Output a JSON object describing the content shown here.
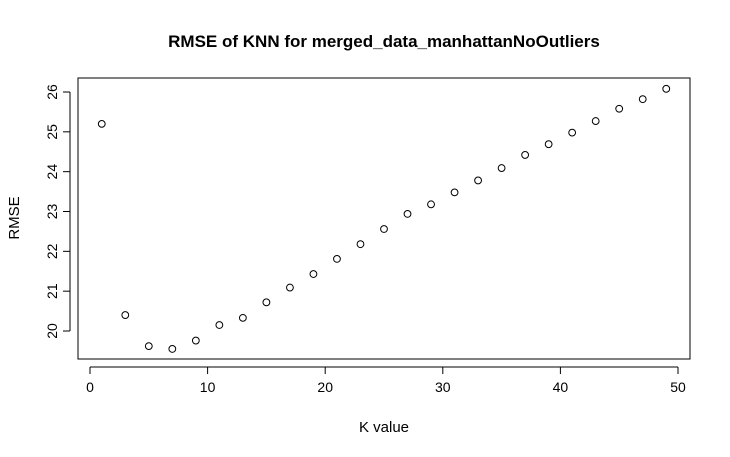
{
  "chart_data": {
    "type": "scatter",
    "title": "RMSE of KNN for merged_data_manhattanNoOutliers",
    "xlabel": "K value",
    "ylabel": "RMSE",
    "x_ticks": [
      0,
      10,
      20,
      30,
      40,
      50
    ],
    "y_ticks": [
      20,
      21,
      22,
      23,
      24,
      25,
      26
    ],
    "xlim": [
      0,
      50
    ],
    "ylim": [
      19.5,
      26.1
    ],
    "grid": false,
    "marker": "open-circle",
    "series": [
      {
        "x": [
          1,
          3,
          5,
          7,
          9,
          11,
          13,
          15,
          17,
          19,
          21,
          23,
          25,
          27,
          29,
          31,
          33,
          35,
          37,
          39,
          41,
          43,
          45,
          47,
          49
        ],
        "y": [
          25.2,
          20.4,
          19.62,
          19.55,
          19.76,
          20.15,
          20.33,
          20.72,
          21.09,
          21.43,
          21.81,
          22.18,
          22.56,
          22.94,
          23.18,
          23.48,
          23.78,
          24.09,
          24.42,
          24.69,
          24.98,
          25.27,
          25.58,
          25.82,
          26.08
        ]
      }
    ]
  }
}
